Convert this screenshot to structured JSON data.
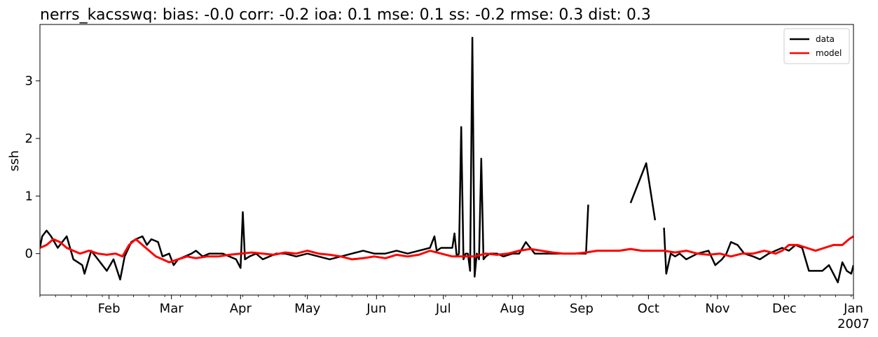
{
  "chart_data": {
    "type": "line",
    "title": "nerrs_kacsswq: bias: -0.0  corr: -0.2  ioa: 0.1  mse: 0.1  ss: -0.2  rmse: 0.3  dist: 0.3",
    "xlabel": "",
    "ylabel": "ssh",
    "x_ticks": [
      "Feb",
      "Mar",
      "Apr",
      "May",
      "Jun",
      "Jul",
      "Aug",
      "Sep",
      "Oct",
      "Nov",
      "Dec",
      "Jan"
    ],
    "x_tick_days": [
      31,
      59,
      90,
      120,
      151,
      181,
      212,
      243,
      273,
      304,
      334,
      365
    ],
    "x_year_label": "2007",
    "xlim_days": [
      0,
      365
    ],
    "ylim": [
      -0.72,
      3.98
    ],
    "y_ticks": [
      0,
      1,
      2,
      3
    ],
    "grid": false,
    "legend_position": "upper right",
    "series": [
      {
        "name": "data",
        "color": "#000000",
        "x_days": [
          0,
          1,
          3,
          5,
          8,
          10,
          12,
          15,
          17,
          19,
          20,
          23,
          26,
          28,
          30,
          33,
          36,
          38,
          41,
          43,
          46,
          48,
          50,
          53,
          55,
          58,
          60,
          62,
          65,
          68,
          70,
          73,
          76,
          79,
          82,
          85,
          88,
          90,
          91,
          92,
          94,
          97,
          100,
          103,
          106,
          110,
          115,
          120,
          125,
          130,
          135,
          140,
          145,
          150,
          155,
          160,
          165,
          170,
          175,
          177,
          178,
          180,
          185,
          186,
          187,
          188,
          189,
          190,
          191,
          192,
          193,
          194,
          195,
          196,
          197,
          198,
          199,
          200,
          202,
          205,
          208,
          212,
          215,
          218,
          222,
          226,
          230,
          235,
          240,
          243,
          245,
          246,
          248,
          250,
          255,
          260,
          265,
          272,
          276,
          279,
          280,
          281,
          283,
          285,
          287,
          290,
          295,
          300,
          303,
          306,
          308,
          310,
          313,
          316,
          320,
          323,
          327,
          330,
          333,
          336,
          339,
          342,
          345,
          348,
          351,
          354,
          356,
          358,
          360,
          362,
          364,
          365
        ],
        "y": [
          0.1,
          0.3,
          0.4,
          0.3,
          0.1,
          0.2,
          0.3,
          -0.1,
          -0.15,
          -0.2,
          -0.35,
          0.05,
          -0.1,
          -0.2,
          -0.3,
          -0.1,
          -0.45,
          -0.05,
          0.2,
          0.25,
          0.3,
          0.15,
          0.25,
          0.2,
          -0.05,
          0.0,
          -0.2,
          -0.1,
          -0.05,
          0.0,
          0.05,
          -0.05,
          0.0,
          0.0,
          0.0,
          -0.05,
          -0.1,
          -0.25,
          0.72,
          -0.1,
          -0.05,
          0.0,
          -0.1,
          -0.05,
          0.0,
          0.0,
          -0.05,
          0.0,
          -0.05,
          -0.1,
          -0.05,
          0.0,
          0.05,
          0.0,
          0.0,
          0.05,
          0.0,
          0.05,
          0.1,
          0.3,
          0.05,
          0.1,
          0.1,
          0.35,
          -0.05,
          0.0,
          2.2,
          -0.1,
          0.0,
          0.0,
          -0.3,
          3.75,
          -0.4,
          0.0,
          -0.1,
          1.65,
          -0.1,
          -0.05,
          0.0,
          0.0,
          -0.05,
          0.0,
          0.0,
          0.2,
          0.0,
          0.0,
          0.0,
          0.0,
          0.0,
          0.0,
          0.0,
          0.85,
          null,
          null,
          0.0,
          null,
          0.88,
          1.57,
          0.58,
          null,
          0.45,
          -0.35,
          0.0,
          -0.05,
          0.0,
          -0.1,
          0.0,
          0.05,
          -0.2,
          -0.1,
          0.0,
          0.2,
          0.15,
          0.0,
          -0.05,
          -0.1,
          0.0,
          0.05,
          0.1,
          0.05,
          0.15,
          0.1,
          -0.3,
          -0.3,
          -0.3,
          -0.2,
          -0.35,
          -0.5,
          -0.15,
          -0.3,
          -0.35,
          -0.2
        ]
      },
      {
        "name": "model",
        "color": "#ff0000",
        "x_days": [
          0,
          3,
          6,
          9,
          12,
          15,
          18,
          22,
          26,
          30,
          34,
          37,
          40,
          43,
          46,
          49,
          52,
          55,
          58,
          62,
          66,
          70,
          75,
          80,
          85,
          90,
          95,
          100,
          105,
          110,
          115,
          120,
          125,
          130,
          135,
          140,
          145,
          150,
          155,
          160,
          165,
          170,
          175,
          180,
          185,
          190,
          195,
          200,
          205,
          210,
          215,
          220,
          225,
          230,
          235,
          240,
          245,
          250,
          255,
          260,
          265,
          270,
          275,
          280,
          285,
          290,
          295,
          300,
          305,
          310,
          315,
          320,
          325,
          330,
          333,
          336,
          340,
          344,
          348,
          352,
          356,
          360,
          363,
          365
        ],
        "y": [
          0.1,
          0.15,
          0.25,
          0.2,
          0.1,
          0.05,
          0.0,
          0.05,
          0.0,
          -0.02,
          0.0,
          -0.05,
          0.15,
          0.25,
          0.15,
          0.05,
          -0.05,
          -0.1,
          -0.15,
          -0.1,
          -0.05,
          -0.08,
          -0.05,
          -0.05,
          -0.02,
          0.0,
          0.02,
          0.0,
          -0.02,
          0.02,
          0.0,
          0.05,
          0.0,
          -0.02,
          -0.05,
          -0.1,
          -0.08,
          -0.05,
          -0.08,
          -0.02,
          -0.05,
          -0.02,
          0.05,
          0.0,
          -0.05,
          -0.05,
          -0.05,
          0.0,
          -0.02,
          0.0,
          0.05,
          0.08,
          0.05,
          0.02,
          0.0,
          0.0,
          0.02,
          0.05,
          0.05,
          0.05,
          0.08,
          0.05,
          0.05,
          0.05,
          0.02,
          0.05,
          0.0,
          -0.02,
          0.0,
          -0.05,
          0.0,
          0.0,
          0.05,
          0.0,
          0.05,
          0.15,
          0.15,
          0.1,
          0.05,
          0.1,
          0.15,
          0.15,
          0.25,
          0.3
        ]
      }
    ]
  }
}
